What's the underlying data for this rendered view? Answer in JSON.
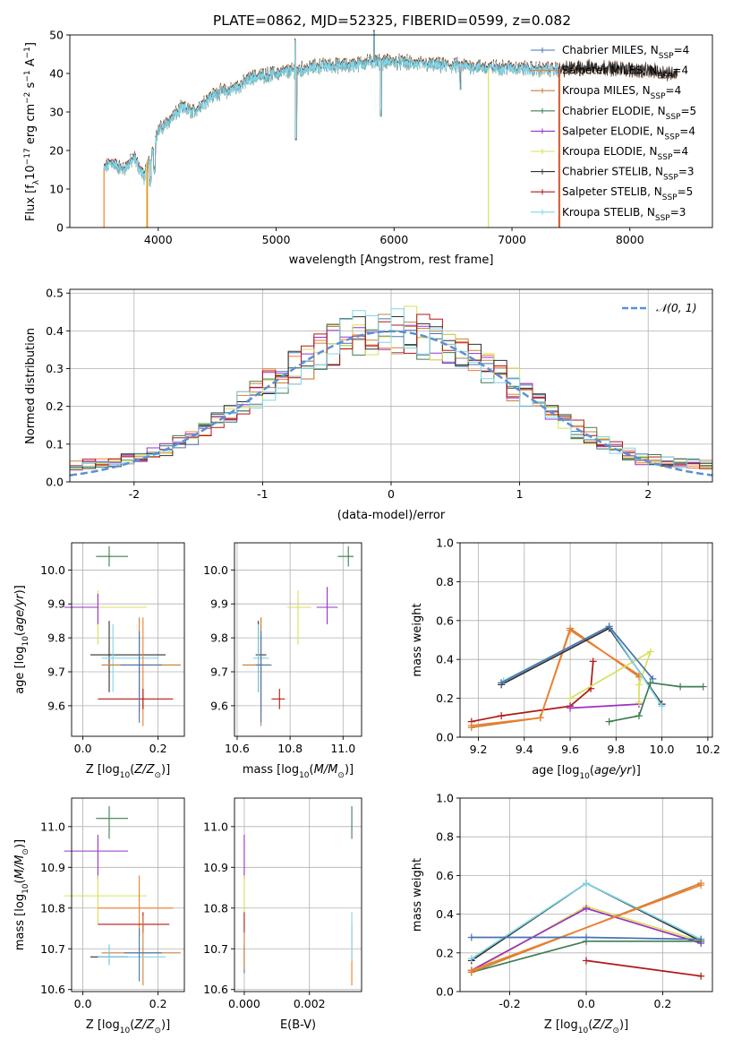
{
  "figure_title": "PLATE=0862, MJD=52325, FIBERID=0599, z=0.082",
  "colors": {
    "chabrier_miles": "#4a72b0",
    "salpeter_miles": "#f07f2e",
    "kroupa_miles": "#c8823a",
    "chabrier_elodie": "#3f7d53",
    "salpeter_elodie": "#9b30c8",
    "kroupa_elodie": "#d8e05a",
    "chabrier_stelib": "#303030",
    "salpeter_stelib": "#b01818",
    "kroupa_stelib": "#7fd6e8",
    "gauss": "#5b8fd6"
  },
  "legend_labels": [
    "Chabrier MILES, N$_{SSP}$=4",
    "Salpeter MILES, N$_{SSP}$=4",
    "Kroupa MILES, N$_{SSP}$=4",
    "Chabrier ELODIE, N$_{SSP}$=5",
    "Salpeter ELODIE, N$_{SSP}$=4",
    "Kroupa ELODIE, N$_{SSP}$=4",
    "Chabrier STELIB, N$_{SSP}$=3",
    "Salpeter STELIB, N$_{SSP}$=5",
    "Kroupa STELIB, N$_{SSP}$=3"
  ],
  "legend_display": [
    {
      "name": "Chabrier MILES, N",
      "sub": "SSP",
      "tail": "=4"
    },
    {
      "name": "Salpeter MILES, N",
      "sub": "SSP",
      "tail": "=4"
    },
    {
      "name": "Kroupa MILES, N",
      "sub": "SSP",
      "tail": "=4"
    },
    {
      "name": "Chabrier ELODIE, N",
      "sub": "SSP",
      "tail": "=5"
    },
    {
      "name": "Salpeter ELODIE, N",
      "sub": "SSP",
      "tail": "=4"
    },
    {
      "name": "Kroupa ELODIE, N",
      "sub": "SSP",
      "tail": "=4"
    },
    {
      "name": "Chabrier STELIB, N",
      "sub": "SSP",
      "tail": "=3"
    },
    {
      "name": "Salpeter STELIB, N",
      "sub": "SSP",
      "tail": "=5"
    },
    {
      "name": "Kroupa STELIB, N",
      "sub": "SSP",
      "tail": "=3"
    }
  ],
  "chart_data": [
    {
      "type": "line",
      "panel": "spectrum",
      "xlabel": "wavelength [Angstrom, rest frame]",
      "ylabel": "Flux [fλ10⁻¹⁷ erg cm⁻² s⁻¹ A⁻¹]",
      "xlim": [
        3250,
        8700
      ],
      "ylim": [
        0,
        50
      ],
      "xticks": [
        4000,
        5000,
        6000,
        7000,
        8000
      ],
      "yticks": [
        0,
        10,
        20,
        30,
        40,
        50
      ],
      "legend": "top-right",
      "continuum": {
        "x": [
          3540,
          3600,
          3700,
          3800,
          3880,
          3950,
          4000,
          4100,
          4200,
          4300,
          4400,
          4500,
          4600,
          4700,
          4800,
          5000,
          5200,
          5400,
          5600,
          5800,
          6000,
          6200,
          6400,
          6600,
          6800,
          7000,
          7200,
          7400,
          7600,
          7800,
          8000,
          8200,
          8400
        ],
        "y": [
          15,
          17,
          15,
          18,
          13,
          20,
          25,
          28,
          31,
          30,
          33,
          35,
          35.5,
          37,
          39,
          40,
          41,
          42,
          42,
          43,
          43,
          42.5,
          42,
          42,
          41.5,
          41.5,
          41,
          41,
          41.5,
          41.5,
          41,
          40.5,
          40
        ]
      },
      "model_edges": {
        "miles_start": 3540,
        "elodie_start": 3900,
        "elodie_end": 6800,
        "stelib_end": 7400
      }
    },
    {
      "type": "histogram",
      "panel": "residuals",
      "xlabel": "(data-model)/error",
      "ylabel": "Normed distribution",
      "xlim": [
        -2.5,
        2.5
      ],
      "ylim": [
        0,
        0.51
      ],
      "xticks": [
        -2,
        -1,
        0,
        1,
        2
      ],
      "yticks": [
        0.0,
        0.1,
        0.2,
        0.3,
        0.4,
        0.5
      ],
      "bin_width": 0.1,
      "bins": [
        -2.5,
        2.5
      ],
      "reference_curve": "𝒩(0, 1)",
      "legend": "top-right"
    },
    {
      "type": "scatter",
      "panel": "Z-age",
      "xlabel": "Z [log10(Z/Z⊙)]",
      "ylabel": "age [log10(age/yr)]",
      "xlim": [
        -0.03,
        0.27
      ],
      "ylim": [
        9.51,
        10.08
      ],
      "xticks": [
        0.0,
        0.2
      ],
      "yticks": [
        9.6,
        9.7,
        9.8,
        9.9,
        10.0
      ],
      "points": [
        {
          "series": "chabrier_elodie",
          "x": 0.07,
          "y": 10.04,
          "xerr": [
            0.035,
            0.05
          ],
          "yerr": [
            0.03,
            0.03
          ]
        },
        {
          "series": "kroupa_elodie",
          "x": 0.04,
          "y": 9.89,
          "xerr": [
            0.09,
            0.13
          ],
          "yerr": [
            0.11,
            0.05
          ]
        },
        {
          "series": "salpeter_elodie",
          "x": 0.04,
          "y": 9.89,
          "xerr": [
            0.09,
            0.0
          ],
          "yerr": [
            0.05,
            0.04
          ]
        },
        {
          "series": "chabrier_stelib",
          "x": 0.07,
          "y": 9.75,
          "xerr": [
            0.05,
            0.15
          ],
          "yerr": [
            0.11,
            0.1
          ]
        },
        {
          "series": "kroupa_stelib",
          "x": 0.08,
          "y": 9.74,
          "xerr": [
            0.03,
            0.12
          ],
          "yerr": [
            0.1,
            0.1
          ]
        },
        {
          "series": "salpeter_miles",
          "x": 0.16,
          "y": 9.72,
          "xerr": [
            0.11,
            0.1
          ],
          "yerr": [
            0.18,
            0.14
          ]
        },
        {
          "series": "kroupa_miles",
          "x": 0.15,
          "y": 9.72,
          "xerr": [
            0.1,
            0.11
          ],
          "yerr": [
            0.14,
            0.14
          ]
        },
        {
          "series": "salpeter_stelib",
          "x": 0.16,
          "y": 9.62,
          "xerr": [
            0.12,
            0.08
          ],
          "yerr": [
            0.03,
            0.03
          ]
        },
        {
          "series": "chabrier_miles",
          "x": 0.15,
          "y": 9.72,
          "xerr": [
            0.05,
            0.06
          ],
          "yerr": [
            0.17,
            0.1
          ]
        }
      ]
    },
    {
      "type": "scatter",
      "panel": "mass-age",
      "xlabel": "mass [log10(M/M⊙)]",
      "ylabel": "",
      "xlim": [
        10.59,
        11.07
      ],
      "ylim": [
        9.51,
        10.08
      ],
      "xticks": [
        10.6,
        10.8,
        11.0
      ],
      "yticks": [
        9.6,
        9.7,
        9.8,
        9.9,
        10.0
      ],
      "points": [
        {
          "series": "chabrier_elodie",
          "x": 11.02,
          "y": 10.04,
          "xerr": [
            0.04,
            0.02
          ],
          "yerr": [
            0.03,
            0.03
          ]
        },
        {
          "series": "kroupa_elodie",
          "x": 10.83,
          "y": 9.89,
          "xerr": [
            0.04,
            0.05
          ],
          "yerr": [
            0.11,
            0.05
          ]
        },
        {
          "series": "salpeter_elodie",
          "x": 10.94,
          "y": 9.89,
          "xerr": [
            0.04,
            0.04
          ],
          "yerr": [
            0.05,
            0.06
          ]
        },
        {
          "series": "chabrier_stelib",
          "x": 10.68,
          "y": 9.75,
          "xerr": [
            0.01,
            0.03
          ],
          "yerr": [
            0.11,
            0.1
          ]
        },
        {
          "series": "kroupa_stelib",
          "x": 10.68,
          "y": 9.74,
          "xerr": [
            0.02,
            0.04
          ],
          "yerr": [
            0.1,
            0.1
          ]
        },
        {
          "series": "salpeter_miles",
          "x": 10.69,
          "y": 9.72,
          "xerr": [
            0.07,
            0.03
          ],
          "yerr": [
            0.18,
            0.14
          ]
        },
        {
          "series": "kroupa_miles",
          "x": 10.69,
          "y": 9.72,
          "xerr": [
            0.07,
            0.01
          ],
          "yerr": [
            0.14,
            0.14
          ]
        },
        {
          "series": "salpeter_stelib",
          "x": 10.76,
          "y": 9.62,
          "xerr": [
            0.03,
            0.02
          ],
          "yerr": [
            0.03,
            0.03
          ]
        },
        {
          "series": "chabrier_miles",
          "x": 10.69,
          "y": 9.72,
          "xerr": [
            0.02,
            0.04
          ],
          "yerr": [
            0.17,
            0.1
          ]
        }
      ]
    },
    {
      "type": "line",
      "panel": "age-weight",
      "xlabel": "age [log10(age/yr)]",
      "ylabel": "mass weight",
      "xlim": [
        9.12,
        10.22
      ],
      "ylim": [
        0,
        1
      ],
      "xticks": [
        9.2,
        9.4,
        9.6,
        9.8,
        10.0,
        10.2
      ],
      "yticks": [
        0.0,
        0.2,
        0.4,
        0.6,
        0.8,
        1.0
      ],
      "series": [
        {
          "name": "salpeter_stelib",
          "x": [
            9.17,
            9.3,
            9.6,
            9.69,
            9.7
          ],
          "y": [
            0.08,
            0.11,
            0.16,
            0.25,
            0.39
          ]
        },
        {
          "name": "kroupa_miles",
          "x": [
            9.17,
            9.47,
            9.6,
            9.9
          ],
          "y": [
            0.05,
            0.1,
            0.56,
            0.31
          ]
        },
        {
          "name": "salpeter_miles",
          "x": [
            9.17,
            9.47,
            9.6,
            9.9
          ],
          "y": [
            0.06,
            0.1,
            0.55,
            0.32
          ]
        },
        {
          "name": "salpeter_elodie",
          "x": [
            9.6,
            9.9
          ],
          "y": [
            0.15,
            0.17
          ]
        },
        {
          "name": "kroupa_elodie",
          "x": [
            9.9,
            9.9,
            9.95,
            9.6
          ],
          "y": [
            0.18,
            0.27,
            0.44,
            0.2
          ]
        },
        {
          "name": "chabrier_stelib",
          "x": [
            9.3,
            9.77,
            10.0
          ],
          "y": [
            0.27,
            0.56,
            0.17
          ]
        },
        {
          "name": "kroupa_stelib",
          "x": [
            9.31,
            9.77,
            10.0
          ],
          "y": [
            0.29,
            0.57,
            0.16
          ]
        },
        {
          "name": "chabrier_elodie",
          "x": [
            9.77,
            9.9,
            9.95,
            10.08,
            10.18
          ],
          "y": [
            0.08,
            0.11,
            0.28,
            0.26,
            0.26
          ]
        },
        {
          "name": "chabrier_miles",
          "x": [
            9.3,
            9.77,
            9.96
          ],
          "y": [
            0.28,
            0.57,
            0.3
          ]
        }
      ]
    },
    {
      "type": "scatter",
      "panel": "Z-mass",
      "xlabel": "Z [log10(Z/Z⊙)]",
      "ylabel": "mass [log10(M/M⊙)]",
      "xlim": [
        -0.03,
        0.27
      ],
      "ylim": [
        10.595,
        11.07
      ],
      "xticks": [
        0.0,
        0.2
      ],
      "yticks": [
        10.6,
        10.7,
        10.8,
        10.9,
        11.0
      ],
      "points": [
        {
          "series": "chabrier_elodie",
          "x": 0.07,
          "y": 11.02,
          "xerr": [
            0.035,
            0.05
          ],
          "yerr": [
            0.05,
            0.03
          ]
        },
        {
          "series": "salpeter_elodie",
          "x": 0.04,
          "y": 10.94,
          "xerr": [
            0.09,
            0.08
          ],
          "yerr": [
            0.07,
            0.04
          ]
        },
        {
          "series": "kroupa_elodie",
          "x": 0.04,
          "y": 10.83,
          "xerr": [
            0.09,
            0.13
          ],
          "yerr": [
            0.07,
            0.05
          ]
        },
        {
          "series": "salpeter_miles",
          "x": 0.15,
          "y": 10.8,
          "xerr": [
            0.11,
            0.09
          ],
          "yerr": [
            0.07,
            0.08
          ]
        },
        {
          "series": "salpeter_stelib",
          "x": 0.16,
          "y": 10.76,
          "xerr": [
            0.12,
            0.07
          ],
          "yerr": [
            0.02,
            0.03
          ]
        },
        {
          "series": "kroupa_miles",
          "x": 0.16,
          "y": 10.69,
          "xerr": [
            0.11,
            0.1
          ],
          "yerr": [
            0.08,
            0.09
          ]
        },
        {
          "series": "chabrier_stelib",
          "x": 0.07,
          "y": 10.68,
          "xerr": [
            0.05,
            0.05
          ],
          "yerr": [
            0.02,
            0.03
          ]
        },
        {
          "series": "kroupa_stelib",
          "x": 0.07,
          "y": 10.68,
          "xerr": [
            0.03,
            0.15
          ],
          "yerr": [
            0.02,
            0.03
          ]
        },
        {
          "series": "chabrier_miles",
          "x": 0.15,
          "y": 10.69,
          "xerr": [
            0.04,
            0.06
          ],
          "yerr": [
            0.07,
            0.06
          ]
        }
      ]
    },
    {
      "type": "scatter",
      "panel": "EBV-mass",
      "xlabel": "E(B-V)",
      "ylabel": "",
      "xlim": [
        -0.0003,
        0.0036
      ],
      "ylim": [
        10.595,
        11.07
      ],
      "xticks": [
        0.0,
        0.002
      ],
      "yticks": [
        10.6,
        10.7,
        10.8,
        10.9,
        11.0
      ],
      "points": [
        {
          "series": "chabrier_elodie",
          "x": 0.0033,
          "y": 11.02,
          "xerr": [
            0,
            0
          ],
          "yerr": [
            0.05,
            0.03
          ]
        },
        {
          "series": "salpeter_elodie",
          "x": 0.0,
          "y": 10.94,
          "xerr": [
            0,
            0
          ],
          "yerr": [
            0.07,
            0.04
          ]
        },
        {
          "series": "kroupa_elodie",
          "x": 0.0,
          "y": 10.83,
          "xerr": [
            0,
            0
          ],
          "yerr": [
            0.07,
            0.05
          ]
        },
        {
          "series": "salpeter_stelib",
          "x": 0.0,
          "y": 10.76,
          "xerr": [
            0,
            0
          ],
          "yerr": [
            0.02,
            0.03
          ]
        },
        {
          "series": "salpeter_miles",
          "x": 0.0033,
          "y": 10.7,
          "xerr": [
            0,
            0
          ],
          "yerr": [
            0.09,
            0.06
          ]
        },
        {
          "series": "kroupa_stelib",
          "x": 0.0033,
          "y": 10.73,
          "xerr": [
            0,
            0
          ],
          "yerr": [
            0.06,
            0.06
          ]
        },
        {
          "series": "chabrier_miles",
          "x": 0.0,
          "y": 10.68,
          "xerr": [
            0,
            0
          ],
          "yerr": [
            0.04,
            0.03
          ]
        },
        {
          "series": "kroupa_miles",
          "x": 0.0,
          "y": 10.7,
          "xerr": [
            0,
            0
          ],
          "yerr": [
            0.05,
            0.04
          ]
        }
      ]
    },
    {
      "type": "line",
      "panel": "Z-weight",
      "xlabel": "Z [log10(Z/Z⊙)]",
      "ylabel": "mass weight",
      "xlim": [
        -0.33,
        0.33
      ],
      "ylim": [
        0,
        1
      ],
      "xticks": [
        -0.2,
        0.0,
        0.2
      ],
      "yticks": [
        0.0,
        0.2,
        0.4,
        0.6,
        0.8,
        1.0
      ],
      "series": [
        {
          "name": "chabrier_stelib",
          "x": [
            -0.3,
            0.0,
            0.3
          ],
          "y": [
            0.16,
            0.56,
            0.26
          ]
        },
        {
          "name": "kroupa_stelib",
          "x": [
            -0.3,
            0.0,
            0.3
          ],
          "y": [
            0.17,
            0.56,
            0.27
          ]
        },
        {
          "name": "kroupa_elodie",
          "x": [
            -0.3,
            0.0,
            0.3
          ],
          "y": [
            0.1,
            0.44,
            0.26
          ]
        },
        {
          "name": "salpeter_elodie",
          "x": [
            -0.3,
            0.0,
            0.3
          ],
          "y": [
            0.11,
            0.43,
            0.25
          ]
        },
        {
          "name": "chabrier_elodie",
          "x": [
            -0.3,
            0.0,
            0.3
          ],
          "y": [
            0.1,
            0.26,
            0.26
          ]
        },
        {
          "name": "salpeter_stelib",
          "x": [
            0.0,
            0.3
          ],
          "y": [
            0.16,
            0.08
          ]
        },
        {
          "name": "kroupa_miles",
          "x": [
            -0.3,
            0.3
          ],
          "y": [
            0.1,
            0.56
          ]
        },
        {
          "name": "salpeter_miles",
          "x": [
            -0.3,
            0.3
          ],
          "y": [
            0.11,
            0.55
          ]
        },
        {
          "name": "chabrier_miles",
          "x": [
            -0.3,
            0.0,
            0.3
          ],
          "y": [
            0.28,
            0.28,
            0.27
          ]
        }
      ]
    }
  ]
}
